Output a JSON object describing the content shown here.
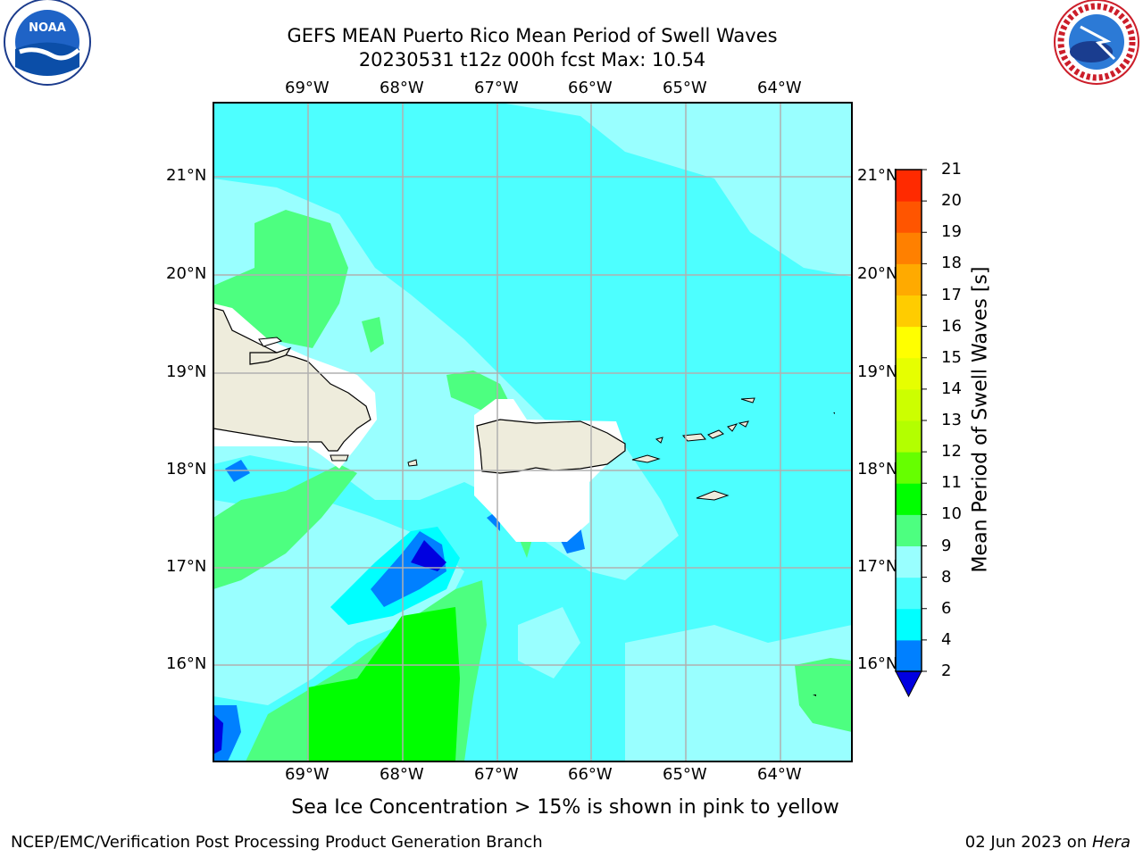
{
  "title": {
    "line1": "GEFS MEAN Puerto Rico Mean Period of Swell Waves",
    "line2": "20230531 t12z 000h fcst   Max: 10.54"
  },
  "map": {
    "lon_labels": [
      "69°W",
      "68°W",
      "67°W",
      "66°W",
      "65°W",
      "64°W"
    ],
    "lat_labels": [
      "21°N",
      "20°N",
      "19°N",
      "18°N",
      "17°N",
      "16°N"
    ],
    "colors": {
      "land": "#eeecdc",
      "masked": "#ffffff",
      "grid": "#b0b0b0"
    }
  },
  "colorbar": {
    "title": "Mean Period of Swell Waves [s]",
    "ticks": [
      "2",
      "4",
      "6",
      "8",
      "9",
      "10",
      "11",
      "12",
      "13",
      "14",
      "15",
      "16",
      "17",
      "18",
      "19",
      "20",
      "21"
    ],
    "colors": [
      "#0000e0",
      "#0080ff",
      "#00ffff",
      "#4dffff",
      "#99ffff",
      "#4dff80",
      "#00ff00",
      "#66ff00",
      "#b3ff00",
      "#ccff00",
      "#e6ff00",
      "#ffff00",
      "#ffcc00",
      "#ffaa00",
      "#ff8000",
      "#ff5500",
      "#ff2a00",
      "#ff0000"
    ]
  },
  "note": "Sea Ice Concentration > 15% is shown in pink to yellow",
  "footer": {
    "left": "NCEP/EMC/Verification Post Processing Product Generation Branch",
    "right_date": "02 Jun 2023 on ",
    "right_host": "Hera"
  },
  "logos": {
    "noaa_text": "NOAA",
    "nws_text": "NATIONAL WEATHER SERVICE"
  }
}
